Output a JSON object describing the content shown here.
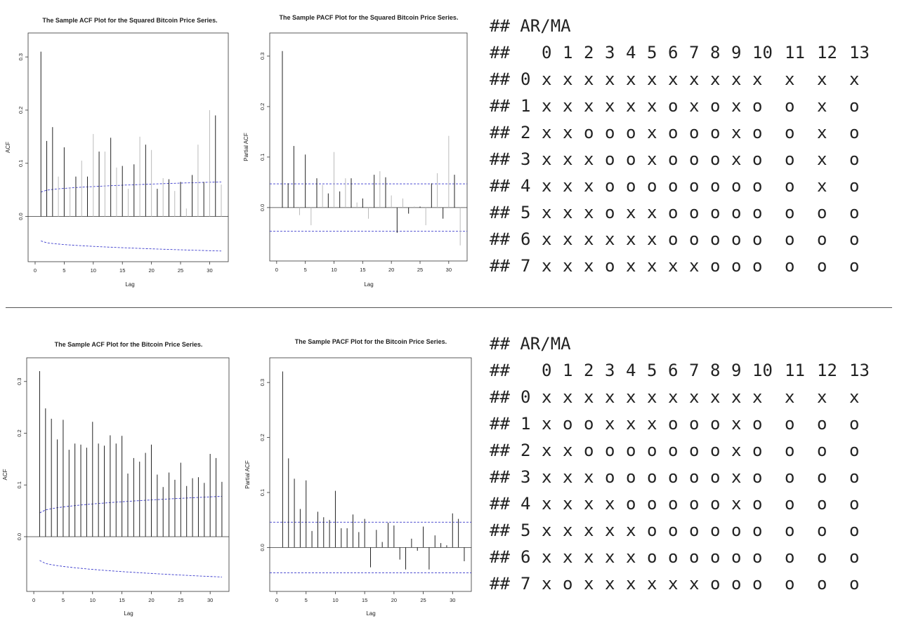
{
  "chart_data": [
    {
      "type": "bar",
      "title": "The Sample ACF Plot for the Squared Bitcoin Price Series.",
      "xlabel": "Lag",
      "ylabel": "ACF",
      "xlim": [
        0,
        32
      ],
      "ylim": [
        -0.07,
        0.33
      ],
      "xticks": [
        "0",
        "5",
        "10",
        "15",
        "20",
        "25",
        "30"
      ],
      "yticks": [
        "0.0",
        "0.1",
        "0.2",
        "0.3"
      ],
      "x": [
        1,
        2,
        3,
        4,
        5,
        6,
        7,
        8,
        9,
        10,
        11,
        12,
        13,
        14,
        15,
        16,
        17,
        18,
        19,
        20,
        21,
        22,
        23,
        24,
        25,
        26,
        27,
        28,
        29,
        30,
        31,
        32
      ],
      "values": [
        0.31,
        0.142,
        0.168,
        0.075,
        0.13,
        0.055,
        0.075,
        0.105,
        0.075,
        0.155,
        0.122,
        0.122,
        0.148,
        0.092,
        0.095,
        0.052,
        0.098,
        0.15,
        0.135,
        0.125,
        0.052,
        0.072,
        0.07,
        0.048,
        0.065,
        0.015,
        0.078,
        0.135,
        0.065,
        0.2,
        0.19,
        0.06
      ],
      "confidence_band": {
        "lag1": 0.046,
        "lag32": 0.065
      }
    },
    {
      "type": "bar",
      "title": "The Sample PACF Plot for the Squared Bitcoin Price Series.",
      "xlabel": "Lag",
      "ylabel": "Partial ACF",
      "xlim": [
        0,
        32
      ],
      "ylim": [
        -0.09,
        0.33
      ],
      "xticks": [
        "0",
        "5",
        "10",
        "15",
        "20",
        "25",
        "30"
      ],
      "yticks": [
        "0.0",
        "0.1",
        "0.2",
        "0.3"
      ],
      "x": [
        1,
        2,
        3,
        4,
        5,
        6,
        7,
        8,
        9,
        10,
        11,
        12,
        13,
        14,
        15,
        16,
        17,
        18,
        19,
        20,
        21,
        22,
        23,
        24,
        25,
        26,
        27,
        28,
        29,
        30,
        31,
        32
      ],
      "values": [
        0.31,
        0.048,
        0.122,
        -0.015,
        0.105,
        -0.035,
        0.058,
        0.045,
        0.028,
        0.11,
        0.032,
        0.058,
        0.058,
        0.01,
        0.018,
        -0.022,
        0.065,
        0.072,
        0.06,
        0.024,
        -0.05,
        0.018,
        -0.012,
        0.002,
        0.002,
        -0.035,
        0.048,
        0.068,
        -0.022,
        0.142,
        0.065,
        -0.075
      ],
      "confidence_band": {
        "value": 0.047
      }
    },
    {
      "type": "bar",
      "title": "The Sample ACF Plot for the Bitcoin Price Series.",
      "xlabel": "Lag",
      "ylabel": "ACF",
      "xlim": [
        0,
        32
      ],
      "ylim": [
        -0.09,
        0.33
      ],
      "xticks": [
        "0",
        "5",
        "10",
        "15",
        "20",
        "25",
        "30"
      ],
      "yticks": [
        "0.0",
        "0.1",
        "0.2",
        "0.3"
      ],
      "x": [
        1,
        2,
        3,
        4,
        5,
        6,
        7,
        8,
        9,
        10,
        11,
        12,
        13,
        14,
        15,
        16,
        17,
        18,
        19,
        20,
        21,
        22,
        23,
        24,
        25,
        26,
        27,
        28,
        29,
        30,
        31,
        32
      ],
      "values": [
        0.32,
        0.248,
        0.228,
        0.188,
        0.226,
        0.168,
        0.18,
        0.178,
        0.172,
        0.222,
        0.18,
        0.176,
        0.196,
        0.18,
        0.195,
        0.122,
        0.152,
        0.145,
        0.162,
        0.178,
        0.12,
        0.096,
        0.124,
        0.11,
        0.143,
        0.098,
        0.113,
        0.115,
        0.104,
        0.16,
        0.152,
        0.106
      ],
      "confidence_band": {
        "lag1": 0.046,
        "lag32": 0.078
      }
    },
    {
      "type": "bar",
      "title": "The Sample PACF Plot for the Bitcoin Price Series.",
      "xlabel": "Lag",
      "ylabel": "Partial ACF",
      "xlim": [
        0,
        32
      ],
      "ylim": [
        -0.065,
        0.33
      ],
      "xticks": [
        "0",
        "5",
        "10",
        "15",
        "20",
        "25",
        "30"
      ],
      "yticks": [
        "0.0",
        "0.1",
        "0.2",
        "0.3"
      ],
      "x": [
        1,
        2,
        3,
        4,
        5,
        6,
        7,
        8,
        9,
        10,
        11,
        12,
        13,
        14,
        15,
        16,
        17,
        18,
        19,
        20,
        21,
        22,
        23,
        24,
        25,
        26,
        27,
        28,
        29,
        30,
        31,
        32
      ],
      "values": [
        0.32,
        0.162,
        0.125,
        0.07,
        0.122,
        0.03,
        0.065,
        0.055,
        0.05,
        0.103,
        0.035,
        0.035,
        0.06,
        0.028,
        0.052,
        -0.036,
        0.032,
        0.01,
        0.045,
        0.04,
        -0.022,
        -0.04,
        0.016,
        -0.006,
        0.038,
        -0.04,
        0.022,
        0.008,
        0.004,
        0.062,
        0.052,
        -0.025
      ],
      "confidence_band": {
        "value": 0.046
      }
    }
  ],
  "eacf_tables": [
    {
      "header_label": "## AR/MA",
      "col_prefix": "##",
      "columns": [
        "0",
        "1",
        "2",
        "3",
        "4",
        "5",
        "6",
        "7",
        "8",
        "9",
        "10",
        "11",
        "12",
        "13"
      ],
      "rows": [
        {
          "prefix": "##",
          "ar": "0",
          "cells": [
            "x",
            "x",
            "x",
            "x",
            "x",
            "x",
            "x",
            "x",
            "x",
            "x",
            "x",
            "x",
            "x",
            "x"
          ]
        },
        {
          "prefix": "##",
          "ar": "1",
          "cells": [
            "x",
            "x",
            "x",
            "x",
            "x",
            "x",
            "o",
            "x",
            "o",
            "x",
            "o",
            "o",
            "x",
            "o"
          ]
        },
        {
          "prefix": "##",
          "ar": "2",
          "cells": [
            "x",
            "x",
            "o",
            "o",
            "o",
            "x",
            "o",
            "o",
            "o",
            "x",
            "o",
            "o",
            "x",
            "o"
          ]
        },
        {
          "prefix": "##",
          "ar": "3",
          "cells": [
            "x",
            "x",
            "x",
            "o",
            "o",
            "x",
            "o",
            "o",
            "o",
            "x",
            "o",
            "o",
            "x",
            "o"
          ]
        },
        {
          "prefix": "##",
          "ar": "4",
          "cells": [
            "x",
            "x",
            "x",
            "o",
            "o",
            "o",
            "o",
            "o",
            "o",
            "o",
            "o",
            "o",
            "x",
            "o"
          ]
        },
        {
          "prefix": "##",
          "ar": "5",
          "cells": [
            "x",
            "x",
            "x",
            "o",
            "x",
            "x",
            "o",
            "o",
            "o",
            "o",
            "o",
            "o",
            "o",
            "o"
          ]
        },
        {
          "prefix": "##",
          "ar": "6",
          "cells": [
            "x",
            "x",
            "x",
            "x",
            "x",
            "x",
            "o",
            "o",
            "o",
            "o",
            "o",
            "o",
            "o",
            "o"
          ]
        },
        {
          "prefix": "##",
          "ar": "7",
          "cells": [
            "x",
            "x",
            "x",
            "o",
            "x",
            "x",
            "x",
            "x",
            "o",
            "o",
            "o",
            "o",
            "o",
            "o"
          ]
        }
      ]
    },
    {
      "header_label": "## AR/MA",
      "col_prefix": "##",
      "columns": [
        "0",
        "1",
        "2",
        "3",
        "4",
        "5",
        "6",
        "7",
        "8",
        "9",
        "10",
        "11",
        "12",
        "13"
      ],
      "rows": [
        {
          "prefix": "##",
          "ar": "0",
          "cells": [
            "x",
            "x",
            "x",
            "x",
            "x",
            "x",
            "x",
            "x",
            "x",
            "x",
            "x",
            "x",
            "x",
            "x"
          ]
        },
        {
          "prefix": "##",
          "ar": "1",
          "cells": [
            "x",
            "o",
            "o",
            "x",
            "x",
            "x",
            "o",
            "o",
            "o",
            "x",
            "o",
            "o",
            "o",
            "o"
          ]
        },
        {
          "prefix": "##",
          "ar": "2",
          "cells": [
            "x",
            "x",
            "o",
            "o",
            "o",
            "o",
            "o",
            "o",
            "o",
            "x",
            "o",
            "o",
            "o",
            "o"
          ]
        },
        {
          "prefix": "##",
          "ar": "3",
          "cells": [
            "x",
            "x",
            "x",
            "o",
            "o",
            "o",
            "o",
            "o",
            "o",
            "x",
            "o",
            "o",
            "o",
            "o"
          ]
        },
        {
          "prefix": "##",
          "ar": "4",
          "cells": [
            "x",
            "x",
            "x",
            "x",
            "o",
            "o",
            "o",
            "o",
            "o",
            "x",
            "o",
            "o",
            "o",
            "o"
          ]
        },
        {
          "prefix": "##",
          "ar": "5",
          "cells": [
            "x",
            "x",
            "x",
            "x",
            "x",
            "o",
            "o",
            "o",
            "o",
            "o",
            "o",
            "o",
            "o",
            "o"
          ]
        },
        {
          "prefix": "##",
          "ar": "6",
          "cells": [
            "x",
            "x",
            "x",
            "x",
            "x",
            "o",
            "o",
            "o",
            "o",
            "o",
            "o",
            "o",
            "o",
            "o"
          ]
        },
        {
          "prefix": "##",
          "ar": "7",
          "cells": [
            "x",
            "o",
            "x",
            "x",
            "x",
            "x",
            "x",
            "x",
            "o",
            "o",
            "o",
            "o",
            "o",
            "o"
          ]
        }
      ]
    }
  ],
  "colors": {
    "bar": "#222222",
    "bar_light": "#bbbbbb",
    "band": "#3a3acc",
    "axis": "#333333",
    "text": "#222222"
  }
}
